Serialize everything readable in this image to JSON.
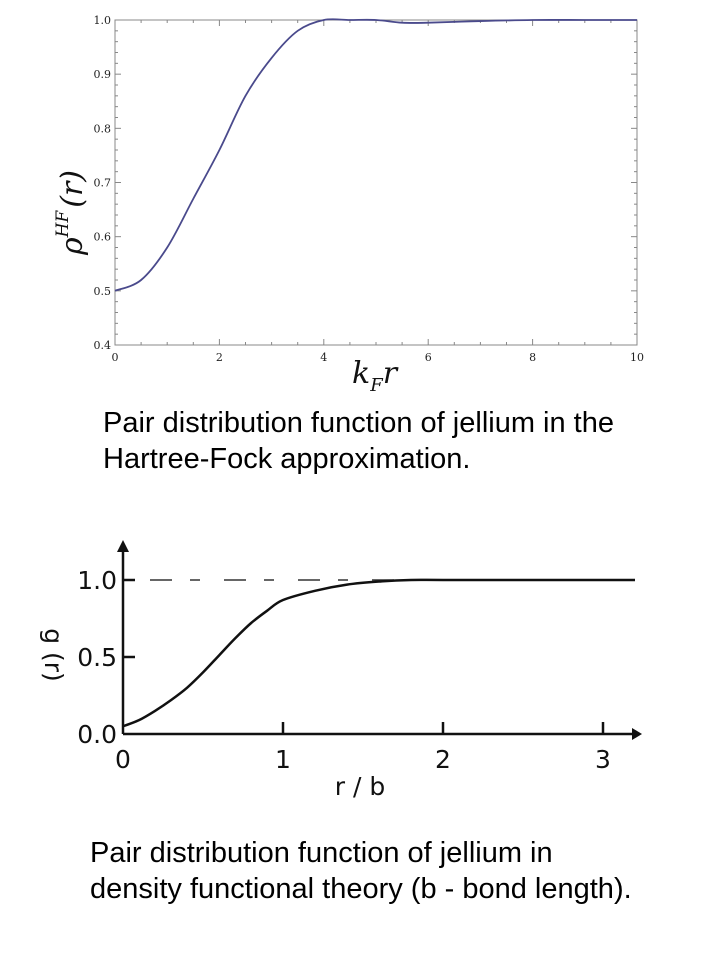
{
  "chart_data": [
    {
      "type": "line",
      "xlabel": "k",
      "xlabel_sub": "F",
      "xlabel_tail": "r",
      "ylabel": "ρ",
      "ylabel_sup": "HF",
      "ylabel_tail": "(r)",
      "xlim": [
        0,
        10
      ],
      "ylim": [
        0.4,
        1.0
      ],
      "xticks": [
        "0",
        "2",
        "4",
        "6",
        "8",
        "10"
      ],
      "yticks": [
        "0.4",
        "0.5",
        "0.6",
        "0.7",
        "0.8",
        "0.9",
        "1.0"
      ],
      "x": [
        0,
        0.5,
        1.0,
        1.5,
        2.0,
        2.5,
        3.0,
        3.5,
        4.0,
        4.5,
        5.0,
        5.5,
        6.0,
        7.0,
        8.0,
        9.0,
        10.0
      ],
      "y": [
        0.5,
        0.52,
        0.58,
        0.67,
        0.76,
        0.86,
        0.93,
        0.98,
        1.0,
        1.0,
        1.0,
        0.995,
        0.995,
        0.998,
        1.0,
        1.0,
        1.0
      ],
      "line_color": "#4a4a8c"
    },
    {
      "type": "line",
      "xlabel": "r / b",
      "ylabel": "g (r)",
      "xlim": [
        0,
        3.2
      ],
      "ylim": [
        0,
        1.2
      ],
      "xticks": [
        "0",
        "1",
        "2",
        "3"
      ],
      "yticks": [
        "0.0",
        "0.5",
        "1.0"
      ],
      "x": [
        0,
        0.1,
        0.2,
        0.3,
        0.4,
        0.5,
        0.6,
        0.7,
        0.8,
        0.9,
        1.0,
        1.2,
        1.4,
        1.6,
        1.8,
        2.0,
        2.5,
        3.0,
        3.2
      ],
      "y": [
        0.05,
        0.09,
        0.15,
        0.22,
        0.3,
        0.4,
        0.51,
        0.62,
        0.72,
        0.8,
        0.87,
        0.93,
        0.97,
        0.99,
        1.0,
        1.0,
        1.0,
        1.0,
        1.0
      ],
      "line_color": "#111111"
    }
  ],
  "captions": {
    "hf": "Pair distribution function of jellium in the Hartree-Fock approximation.",
    "dft": "Pair distribution function of jellium in density functional theory (b -  bond length)."
  }
}
